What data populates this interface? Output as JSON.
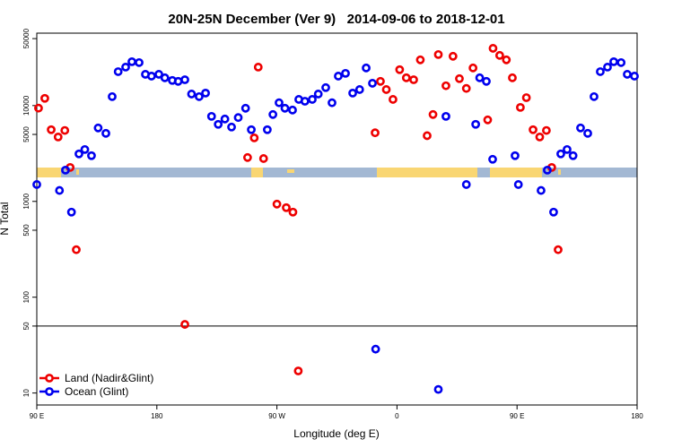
{
  "chart_data": {
    "type": "scatter",
    "title": "20N-25N December (Ver 9)   2014-09-06 to 2018-12-01",
    "xlabel": "Longitude (deg E)",
    "ylabel": "N Total",
    "xlim": [
      90,
      540
    ],
    "xticks": [
      {
        "value": 90,
        "label": "90 E"
      },
      180,
      {
        "value": 270,
        "label": "90 W"
      },
      {
        "value": 360,
        "label": "0"
      },
      {
        "value": 450,
        "label": "90 E"
      },
      {
        "value": 540,
        "label": "180"
      }
    ],
    "ylim": [
      7.5,
      57000
    ],
    "yticks": [
      10,
      50,
      100,
      500,
      1000,
      5000,
      10000,
      50000
    ],
    "log_y": true,
    "reference_line": 50,
    "legend": "bottomleft",
    "series": [
      {
        "name": "Land (Nadir&Glint)",
        "color": "#ee0000",
        "x": [
          91.3,
          96,
          100.8,
          106,
          111,
          115,
          119.6,
          201,
          248,
          253,
          256,
          260,
          270,
          277,
          282,
          286,
          343.6,
          347.6,
          352,
          357,
          362,
          367,
          372.5,
          377.5,
          382.6,
          387,
          391,
          396.7,
          402,
          406.8,
          412,
          417,
          428,
          432,
          437,
          442,
          446.5,
          452.5,
          457,
          462,
          467,
          472,
          476,
          480.8
        ],
        "values": [
          9400,
          11900,
          5600,
          4700,
          5500,
          2260,
          313,
          52,
          2870,
          4600,
          25200,
          2800,
          937,
          860,
          773,
          17,
          5200,
          17900,
          14700,
          11600,
          23700,
          19500,
          18600,
          30000,
          4850,
          8070,
          34100,
          16100,
          32700,
          19100,
          15100,
          24700,
          7090,
          39600,
          33400,
          30000,
          19500,
          9570,
          12100,
          5600,
          4700,
          5500,
          2260,
          313
        ]
      },
      {
        "name": "Ocean (Glint)",
        "color": "#0000ee",
        "x": [
          90,
          107,
          111.5,
          116,
          121.6,
          126,
          131,
          136,
          141.8,
          146.5,
          151,
          156.6,
          161.3,
          166.7,
          171.4,
          176,
          181.5,
          186,
          191.6,
          196,
          201,
          206,
          211.7,
          216.5,
          221,
          226,
          231,
          236,
          241,
          246.5,
          250.8,
          262.8,
          267,
          271.6,
          276,
          281.7,
          286.4,
          291,
          296.5,
          301,
          306.6,
          311.3,
          316,
          321.4,
          326.8,
          332,
          336.9,
          341.6,
          344,
          391,
          396.7,
          412,
          419,
          422,
          427,
          431.7,
          448.5,
          451,
          468,
          472.7,
          477.4,
          482.8,
          487.5,
          492,
          497.6,
          503,
          507.7,
          512.4,
          517.8,
          522.5,
          528,
          532.6,
          538
        ],
        "values": [
          1500,
          1300,
          2120,
          773,
          3130,
          3480,
          3000,
          5840,
          5130,
          12400,
          22600,
          25200,
          28700,
          28100,
          21200,
          20300,
          21200,
          19500,
          18300,
          17900,
          18600,
          13200,
          12400,
          13500,
          7720,
          6370,
          7240,
          5970,
          7500,
          9380,
          5600,
          5600,
          8070,
          10700,
          9380,
          8980,
          11600,
          11100,
          11600,
          13200,
          15400,
          10700,
          20300,
          21700,
          13500,
          14700,
          24700,
          17100,
          28.7,
          10.9,
          7720,
          1500,
          6370,
          19500,
          17900,
          2750,
          3000,
          1500,
          1300,
          2120,
          773,
          3130,
          3480,
          3000,
          5840,
          5130,
          12400,
          22600,
          25200,
          28700,
          28100,
          21200,
          20300
        ]
      }
    ]
  }
}
